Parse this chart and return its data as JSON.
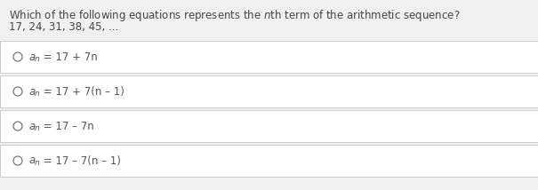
{
  "bg_color": "#f0f0f0",
  "options_text": [
    [
      "a",
      "n",
      " = 17 + 7n"
    ],
    [
      "a",
      "n",
      " = 17 + 7(n – 1)"
    ],
    [
      "a",
      "n",
      " = 17 – 7n"
    ],
    [
      "a",
      "n",
      " = 17 – 7(n – 1)"
    ]
  ],
  "option_box_color": "#ffffff",
  "option_border_color": "#cccccc",
  "question_color": "#444444",
  "sequence_color": "#444444",
  "radio_color": "#777777",
  "label_color": "#555555",
  "font_size_question": 8.5,
  "font_size_sequence": 8.5,
  "font_size_option": 8.5,
  "font_size_subscript": 6.5
}
